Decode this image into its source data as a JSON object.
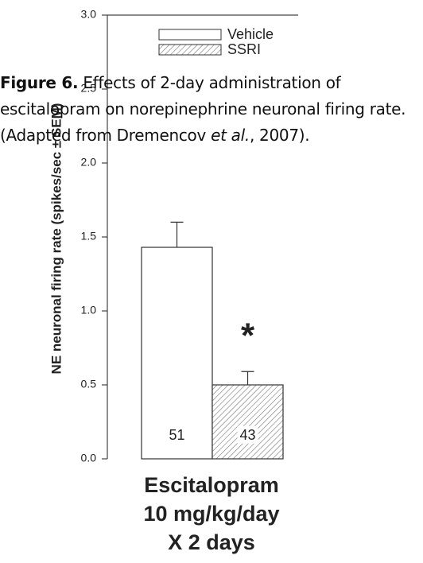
{
  "chart_data": {
    "type": "bar",
    "y_label": "NE neuronal firing rate (spikes/sec ± SEM)",
    "x_label": [
      "Escitalopram",
      "10 mg/kg/day",
      "X 2 days"
    ],
    "series": [
      {
        "name": "Vehicle",
        "color": "#ffffff",
        "hatch": false,
        "values": [
          1.43
        ],
        "errors": [
          0.17
        ],
        "n_labels": [
          "51"
        ]
      },
      {
        "name": "SSRI",
        "color": "#ffffff",
        "hatch": true,
        "values": [
          0.5
        ],
        "errors": [
          0.09
        ],
        "n_labels": [
          "43"
        ]
      }
    ],
    "annotation": "*",
    "ylim": [
      0,
      3
    ],
    "yticks": [
      {
        "value": 0,
        "label": "0.0"
      },
      0.5,
      {
        "value": 1,
        "label": "1.0"
      },
      1.5,
      {
        "value": 2,
        "label": "2.0"
      },
      2.5,
      {
        "value": 3,
        "label": "3.0"
      }
    ]
  },
  "caption": {
    "label": "Figure 6.",
    "text": " Effects of 2-day administration of escitalopram on norepinephrine neuronal firing rate. (Adapted from Dremencov ",
    "italic": "et al.",
    "end": ", 2007)."
  }
}
